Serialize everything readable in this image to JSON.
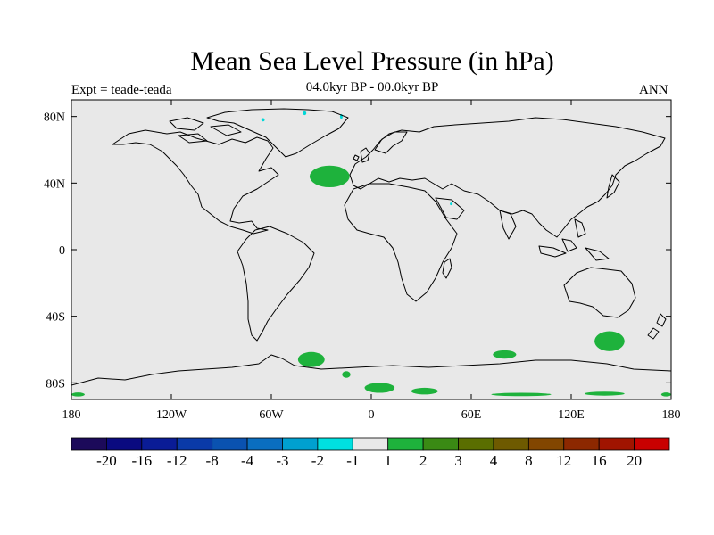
{
  "title": "Mean Sea Level Pressure (in hPa)",
  "subtitle": "04.0kyr BP - 00.0kyr BP",
  "left_label": "Expt = teade-teada",
  "right_label": "ANN",
  "background_color": "#e8e8e8",
  "coast_color": "#000000",
  "axes": {
    "x_ticks": [
      {
        "label": "180",
        "lon": -180
      },
      {
        "label": "120W",
        "lon": -120
      },
      {
        "label": "60W",
        "lon": -60
      },
      {
        "label": "0",
        "lon": 0
      },
      {
        "label": "60E",
        "lon": 60
      },
      {
        "label": "120E",
        "lon": 120
      },
      {
        "label": "180",
        "lon": 180
      }
    ],
    "y_ticks": [
      {
        "label": "80N",
        "lat": 80
      },
      {
        "label": "40N",
        "lat": 40
      },
      {
        "label": "0",
        "lat": 0
      },
      {
        "label": "40S",
        "lat": -40
      },
      {
        "label": "80S",
        "lat": -80
      }
    ],
    "lon_range": [
      -180,
      180
    ],
    "lat_range": [
      -90,
      90
    ]
  },
  "anomalies": [
    {
      "name": "north-atlantic-positive",
      "lon": -25,
      "lat": 44,
      "rlon": 12,
      "rlat": 6.5,
      "class": "1 to 2",
      "color": "#1eb23c"
    },
    {
      "name": "south-atlantic-positive",
      "lon": -36,
      "lat": -66,
      "rlon": 8,
      "rlat": 4.5,
      "class": "1 to 2",
      "color": "#1eb23c"
    },
    {
      "name": "southern-indian-positive",
      "lon": 80,
      "lat": -63,
      "rlon": 7,
      "rlat": 2.5,
      "class": "1 to 2",
      "color": "#1eb23c"
    },
    {
      "name": "southern-ocean-australia-positive",
      "lon": 143,
      "lat": -55,
      "rlon": 9,
      "rlat": 6,
      "class": "1 to 2",
      "color": "#1eb23c"
    },
    {
      "name": "antarctic-coast-positive-1",
      "lon": 5,
      "lat": -83,
      "rlon": 9,
      "rlat": 3,
      "class": "1 to 2",
      "color": "#1eb23c"
    },
    {
      "name": "antarctic-coast-positive-2",
      "lon": 32,
      "lat": -85,
      "rlon": 8,
      "rlat": 2,
      "class": "1 to 2",
      "color": "#1eb23c"
    },
    {
      "name": "antarctic-coast-positive-3",
      "lon": 90,
      "lat": -87,
      "rlon": 18,
      "rlat": 1,
      "class": "1 to 2",
      "color": "#1eb23c"
    },
    {
      "name": "antarctic-coast-positive-4",
      "lon": 140,
      "lat": -86.5,
      "rlon": 12,
      "rlat": 1.2,
      "class": "1 to 2",
      "color": "#1eb23c"
    },
    {
      "name": "antarctic-coast-positive-5",
      "lon": -176,
      "lat": -87,
      "rlon": 4,
      "rlat": 1.2,
      "class": "1 to 2",
      "color": "#1eb23c"
    },
    {
      "name": "antarctic-coast-positive-6",
      "lon": 177,
      "lat": -87,
      "rlon": 3,
      "rlat": 1.2,
      "class": "1 to 2",
      "color": "#1eb23c"
    },
    {
      "name": "weddell-positive",
      "lon": -15,
      "lat": -75,
      "rlon": 2.5,
      "rlat": 2,
      "class": "1 to 2",
      "color": "#1eb23c"
    },
    {
      "name": "greenland-negative-1",
      "lon": -40,
      "lat": 82,
      "rlon": 1,
      "rlat": 1.2,
      "class": "-2 to -1",
      "color": "#00d8d8"
    },
    {
      "name": "greenland-negative-2",
      "lon": -18,
      "lat": 80,
      "rlon": 0.8,
      "rlat": 1.5,
      "class": "-2 to -1",
      "color": "#00d8d8"
    },
    {
      "name": "greenland-negative-3",
      "lon": -65,
      "lat": 78,
      "rlon": 1,
      "rlat": 1,
      "class": "-2 to -1",
      "color": "#00d8d8"
    },
    {
      "name": "indian-negative",
      "lon": 48,
      "lat": 27.5,
      "rlon": 0.8,
      "rlat": 0.8,
      "class": "-2 to -1",
      "color": "#00d8d8"
    }
  ],
  "colorbar": {
    "colors": [
      "#1c0a5a",
      "#0a0a80",
      "#0a1c96",
      "#0a3aa8",
      "#0a52b0",
      "#0a6ec0",
      "#00a0d0",
      "#00e0e0",
      "#e8e8e8",
      "#1eb23c",
      "#3a8a14",
      "#5a6e00",
      "#6e5a00",
      "#824600",
      "#8c2800",
      "#a01400",
      "#c80000"
    ],
    "tick_labels": [
      "-20",
      "-16",
      "-12",
      "-8",
      "-4",
      "-3",
      "-2",
      "-1",
      "1",
      "2",
      "3",
      "4",
      "8",
      "12",
      "16",
      "20"
    ]
  }
}
